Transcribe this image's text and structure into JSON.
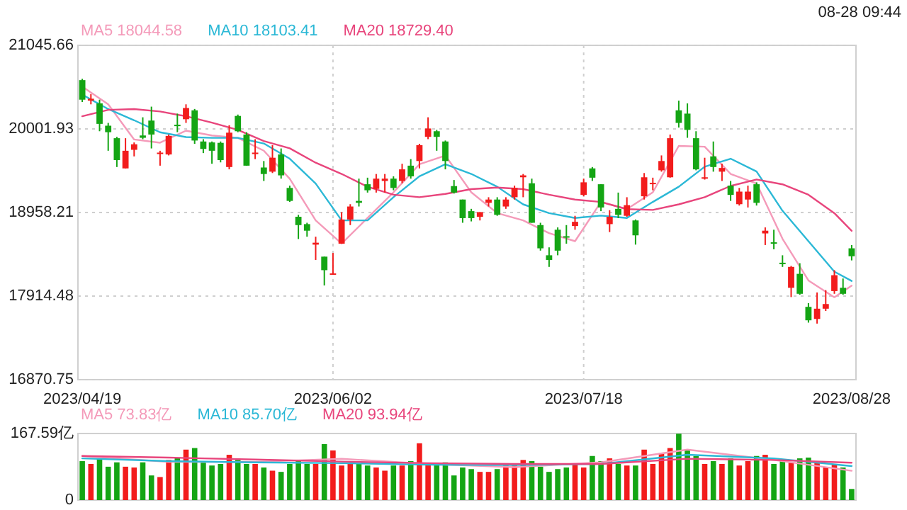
{
  "chart_data": [
    {
      "type": "candlestick",
      "annotations": [
        "08-28 09:44"
      ],
      "categories": [
        "2023/04/19",
        null,
        null,
        null,
        null,
        null,
        null,
        null,
        null,
        null,
        null,
        null,
        null,
        null,
        null,
        null,
        null,
        null,
        null,
        null,
        null,
        null,
        null,
        null,
        null,
        null,
        null,
        null,
        null,
        "2023/06/02",
        null,
        null,
        null,
        null,
        null,
        null,
        null,
        null,
        null,
        null,
        null,
        null,
        null,
        null,
        null,
        null,
        null,
        null,
        null,
        null,
        null,
        null,
        null,
        null,
        null,
        null,
        null,
        null,
        "2023/07/18",
        null,
        null,
        null,
        null,
        null,
        null,
        null,
        null,
        null,
        null,
        null,
        null,
        null,
        null,
        null,
        null,
        null,
        null,
        null,
        null,
        null,
        null,
        null,
        null,
        null,
        null,
        null,
        null,
        null,
        null,
        "2023/08/28"
      ],
      "ohlc": [
        [
          20611,
          20628,
          20338,
          20367
        ],
        [
          20355,
          20437,
          20309,
          20379
        ],
        [
          20321,
          20367,
          19973,
          20065
        ],
        [
          20042,
          20077,
          19729,
          19961
        ],
        [
          19886,
          19903,
          19526,
          19613
        ],
        [
          19509,
          19886,
          19509,
          19729
        ],
        [
          19741,
          19833,
          19659,
          19810
        ],
        [
          19920,
          20147,
          19874,
          19891
        ],
        [
          20106,
          20280,
          19758,
          19932
        ],
        [
          19694,
          19729,
          19543,
          19706
        ],
        [
          19683,
          19932,
          19671,
          19915
        ],
        [
          20054,
          20193,
          19961,
          20042
        ],
        [
          20123,
          20309,
          20077,
          20263
        ],
        [
          20234,
          20251,
          19816,
          19857
        ],
        [
          19845,
          19874,
          19700,
          19752
        ],
        [
          19833,
          19845,
          19567,
          19729
        ],
        [
          19828,
          19845,
          19584,
          19613
        ],
        [
          19526,
          20048,
          19497,
          19955
        ],
        [
          20164,
          20181,
          19961,
          19973
        ],
        [
          19932,
          19961,
          19543,
          19543
        ],
        [
          19694,
          19874,
          19625,
          19706
        ],
        [
          19520,
          19601,
          19352,
          19439
        ],
        [
          19468,
          19799,
          19451,
          19642
        ],
        [
          19683,
          19758,
          19381,
          19422
        ],
        [
          19265,
          19294,
          19091,
          19103
        ],
        [
          18905,
          18929,
          18627,
          18801
        ],
        [
          18813,
          18830,
          18656,
          18731
        ],
        [
          18557,
          18656,
          18366,
          18581
        ],
        [
          18407,
          18407,
          18047,
          18238
        ],
        [
          18186,
          18453,
          18186,
          18198
        ],
        [
          18569,
          18963,
          18569,
          18871
        ],
        [
          18871,
          19062,
          18801,
          19033
        ],
        [
          19103,
          19381,
          19033,
          19079
        ],
        [
          19311,
          19393,
          19207,
          19236
        ],
        [
          19253,
          19439,
          19207,
          19381
        ],
        [
          19352,
          19439,
          19207,
          19381
        ],
        [
          19381,
          19410,
          19236,
          19265
        ],
        [
          19352,
          19567,
          19323,
          19497
        ],
        [
          19543,
          19625,
          19381,
          19410
        ],
        [
          19601,
          19816,
          19509,
          19799
        ],
        [
          19903,
          20147,
          19874,
          20007
        ],
        [
          19973,
          19990,
          19729,
          19903
        ],
        [
          19845,
          19857,
          19497,
          19601
        ],
        [
          19288,
          19364,
          19195,
          19207
        ],
        [
          19120,
          19120,
          18830,
          18888
        ],
        [
          18975,
          19004,
          18847,
          18888
        ],
        [
          18905,
          18963,
          18859,
          18963
        ],
        [
          19079,
          19149,
          19033,
          19120
        ],
        [
          19120,
          19149,
          18917,
          18929
        ],
        [
          19033,
          19149,
          19004,
          19120
        ],
        [
          19149,
          19294,
          19120,
          19265
        ],
        [
          19398,
          19439,
          19149,
          19422
        ],
        [
          19323,
          19381,
          18830,
          18830
        ],
        [
          18801,
          18830,
          18482,
          18511
        ],
        [
          18424,
          18523,
          18279,
          18366
        ],
        [
          18743,
          18772,
          18424,
          18482
        ],
        [
          18662,
          18801,
          18569,
          18650
        ],
        [
          18789,
          18917,
          18743,
          18842
        ],
        [
          19178,
          19381,
          19161,
          19335
        ],
        [
          19509,
          19526,
          19352,
          19393
        ],
        [
          19311,
          19311,
          18975,
          19021
        ],
        [
          18813,
          18987,
          18714,
          18905
        ],
        [
          19004,
          19207,
          18888,
          18929
        ],
        [
          18917,
          19149,
          18905,
          19050
        ],
        [
          18859,
          18871,
          18557,
          18673
        ],
        [
          19161,
          19451,
          19120,
          19398
        ],
        [
          19317,
          19393,
          19236,
          19329
        ],
        [
          19485,
          19671,
          19468,
          19601
        ],
        [
          19398,
          19932,
          19393,
          19886
        ],
        [
          20234,
          20355,
          20019,
          20077
        ],
        [
          20193,
          20321,
          19891,
          19990
        ],
        [
          19886,
          19973,
          19485,
          19497
        ],
        [
          19387,
          19642,
          19369,
          19398
        ],
        [
          19659,
          19845,
          19468,
          19526
        ],
        [
          19468,
          19567,
          19352,
          19514
        ],
        [
          19294,
          19352,
          19103,
          19178
        ],
        [
          19062,
          19265,
          19045,
          19219
        ],
        [
          19120,
          19294,
          19021,
          19219
        ],
        [
          19311,
          19335,
          19045,
          19079
        ],
        [
          18697,
          18772,
          18552,
          18731
        ],
        [
          18586,
          18743,
          18499,
          18575
        ],
        [
          18331,
          18424,
          18279,
          18320
        ],
        [
          18018,
          18291,
          17902,
          18279
        ],
        [
          18192,
          18325,
          17931,
          17943
        ],
        [
          17780,
          17827,
          17583,
          17612
        ],
        [
          17629,
          17960,
          17571,
          17757
        ],
        [
          17757,
          17989,
          17728,
          17815
        ],
        [
          17977,
          18238,
          17943,
          18175
        ],
        [
          18018,
          18134,
          17931,
          17943
        ],
        [
          18511,
          18552,
          18360,
          18412
        ]
      ],
      "colors": [
        "#14a514",
        "#f21c1c",
        "#14a514",
        "#14a514",
        "#14a514",
        "#f21c1c",
        "#f21c1c",
        "#14a514",
        "#14a514",
        "#f21c1c",
        "#f21c1c",
        "#14a514",
        "#f21c1c",
        "#14a514",
        "#14a514",
        "#14a514",
        "#14a514",
        "#f21c1c",
        "#14a514",
        "#14a514",
        "#f21c1c",
        "#14a514",
        "#f21c1c",
        "#14a514",
        "#14a514",
        "#14a514",
        "#14a514",
        "#f21c1c",
        "#14a514",
        "#f21c1c",
        "#f21c1c",
        "#f21c1c",
        "#14a514",
        "#14a514",
        "#f21c1c",
        "#f21c1c",
        "#14a514",
        "#f21c1c",
        "#14a514",
        "#f21c1c",
        "#f21c1c",
        "#14a514",
        "#14a514",
        "#14a514",
        "#14a514",
        "#14a514",
        "#f21c1c",
        "#f21c1c",
        "#14a514",
        "#f21c1c",
        "#f21c1c",
        "#f21c1c",
        "#14a514",
        "#14a514",
        "#14a514",
        "#14a514",
        "#14a514",
        "#f21c1c",
        "#f21c1c",
        "#14a514",
        "#14a514",
        "#f21c1c",
        "#14a514",
        "#f21c1c",
        "#14a514",
        "#f21c1c",
        "#f21c1c",
        "#f21c1c",
        "#f21c1c",
        "#14a514",
        "#14a514",
        "#14a514",
        "#f21c1c",
        "#14a514",
        "#f21c1c",
        "#14a514",
        "#f21c1c",
        "#f21c1c",
        "#14a514",
        "#f21c1c",
        "#14a514",
        "#14a514",
        "#f21c1c",
        "#14a514",
        "#14a514",
        "#f21c1c",
        "#f21c1c",
        "#f21c1c",
        "#14a514",
        "#14a514"
      ],
      "series": [
        {
          "type": "line",
          "name": "MA5 18044.58",
          "color": "#f49ab9",
          "values": [
            20530,
            null,
            null,
            20310,
            null,
            null,
            19870,
            null,
            null,
            19830,
            null,
            null,
            19980,
            null,
            null,
            19920,
            null,
            null,
            19890,
            null,
            null,
            19730,
            null,
            null,
            19380,
            null,
            null,
            18860,
            null,
            null,
            18570,
            null,
            null,
            18890,
            null,
            null,
            19210,
            null,
            null,
            19560,
            null,
            null,
            19670,
            null,
            null,
            19210,
            null,
            null,
            18950,
            null,
            null,
            18860,
            null,
            null,
            18700,
            null,
            null,
            18600,
            null,
            null,
            19090,
            null,
            null,
            19000,
            null,
            null,
            19210,
            null,
            null,
            19790,
            null,
            null,
            19780,
            null,
            null,
            19440,
            null,
            null,
            19320,
            null,
            null,
            18630,
            null,
            null,
            18110,
            null,
            null,
            17900,
            null,
            18044.58
          ]
        },
        {
          "type": "line",
          "name": "MA10 18103.41",
          "color": "#2bb8d6",
          "values": [
            20430,
            null,
            null,
            20250,
            null,
            null,
            20110,
            null,
            null,
            19960,
            null,
            null,
            19900,
            null,
            null,
            19890,
            null,
            null,
            19890,
            null,
            null,
            19820,
            null,
            null,
            19630,
            null,
            null,
            19320,
            null,
            null,
            18860,
            null,
            null,
            18860,
            null,
            null,
            19150,
            null,
            null,
            19410,
            null,
            null,
            19560,
            null,
            null,
            19440,
            null,
            null,
            19280,
            null,
            null,
            19060,
            null,
            null,
            18950,
            null,
            null,
            18890,
            null,
            null,
            18920,
            null,
            null,
            18890,
            null,
            null,
            19090,
            null,
            null,
            19280,
            null,
            null,
            19530,
            null,
            null,
            19630,
            null,
            null,
            19470,
            null,
            null,
            18980,
            null,
            null,
            18600,
            null,
            null,
            18220,
            null,
            18103.41
          ]
        },
        {
          "type": "line",
          "name": "MA20 18729.40",
          "color": "#e8457c",
          "values": [
            20160,
            null,
            null,
            20240,
            null,
            null,
            20250,
            null,
            null,
            20220,
            null,
            null,
            20160,
            null,
            null,
            20080,
            null,
            null,
            19990,
            null,
            null,
            19850,
            null,
            null,
            19760,
            null,
            null,
            19580,
            null,
            null,
            19440,
            null,
            null,
            19280,
            null,
            null,
            19180,
            null,
            null,
            19150,
            null,
            null,
            19190,
            null,
            null,
            19250,
            null,
            null,
            19270,
            null,
            null,
            19250,
            null,
            null,
            19180,
            null,
            null,
            19120,
            null,
            null,
            19090,
            null,
            null,
            19000,
            null,
            null,
            18990,
            null,
            null,
            19060,
            null,
            null,
            19150,
            null,
            null,
            19290,
            null,
            null,
            19370,
            null,
            null,
            19310,
            null,
            null,
            19180,
            null,
            null,
            18950,
            null,
            18729.4
          ]
        }
      ],
      "ylim": [
        16870.75,
        21045.66
      ],
      "yticks": [
        16870.75,
        17914.48,
        18958.21,
        20001.93,
        21045.66
      ],
      "grid": true,
      "legend": "top left"
    },
    {
      "type": "bar",
      "tick_labels": "y",
      "categories": [
        null,
        null,
        null,
        null,
        null,
        null,
        null,
        null,
        null,
        null,
        null,
        null,
        null,
        null,
        null,
        null,
        null,
        null,
        null,
        null,
        null,
        null,
        null,
        null,
        null,
        null,
        null,
        null,
        null,
        null,
        null,
        null,
        null,
        null,
        null,
        null,
        null,
        null,
        null,
        null,
        null,
        null,
        null,
        null,
        null,
        null,
        null,
        null,
        null,
        null,
        null,
        null,
        null,
        null,
        null,
        null,
        null,
        null,
        null,
        null,
        null,
        null,
        null,
        null,
        null,
        null,
        null,
        null,
        null,
        null,
        null,
        null,
        null,
        null,
        null,
        null,
        null,
        null,
        null,
        null,
        null,
        null,
        null,
        null,
        null,
        null,
        null,
        null,
        null,
        null
      ],
      "values": [
        98,
        91,
        105,
        84,
        95,
        84,
        82,
        95,
        62,
        58,
        101,
        107,
        127,
        131,
        94,
        87,
        91,
        114,
        101,
        91,
        91,
        82,
        74,
        71,
        91,
        98,
        91,
        91,
        141,
        125,
        87,
        91,
        91,
        87,
        82,
        74,
        87,
        87,
        98,
        143,
        91,
        91,
        95,
        62,
        82,
        78,
        71,
        71,
        78,
        87,
        91,
        101,
        98,
        84,
        71,
        78,
        82,
        91,
        82,
        111,
        98,
        105,
        91,
        87,
        87,
        127,
        91,
        118,
        131,
        167,
        125,
        111,
        91,
        98,
        91,
        105,
        87,
        98,
        111,
        114,
        91,
        98,
        94,
        105,
        107,
        95,
        82,
        91,
        82,
        28
      ],
      "colors": [
        "#14a514",
        "#f21c1c",
        "#14a514",
        "#14a514",
        "#14a514",
        "#f21c1c",
        "#f21c1c",
        "#14a514",
        "#14a514",
        "#f21c1c",
        "#f21c1c",
        "#14a514",
        "#f21c1c",
        "#14a514",
        "#14a514",
        "#14a514",
        "#14a514",
        "#f21c1c",
        "#14a514",
        "#14a514",
        "#f21c1c",
        "#14a514",
        "#f21c1c",
        "#14a514",
        "#14a514",
        "#14a514",
        "#14a514",
        "#f21c1c",
        "#14a514",
        "#f21c1c",
        "#f21c1c",
        "#f21c1c",
        "#14a514",
        "#14a514",
        "#f21c1c",
        "#f21c1c",
        "#14a514",
        "#f21c1c",
        "#14a514",
        "#f21c1c",
        "#f21c1c",
        "#14a514",
        "#14a514",
        "#14a514",
        "#14a514",
        "#14a514",
        "#f21c1c",
        "#f21c1c",
        "#14a514",
        "#f21c1c",
        "#f21c1c",
        "#f21c1c",
        "#14a514",
        "#14a514",
        "#14a514",
        "#14a514",
        "#14a514",
        "#f21c1c",
        "#f21c1c",
        "#14a514",
        "#14a514",
        "#f21c1c",
        "#14a514",
        "#f21c1c",
        "#14a514",
        "#f21c1c",
        "#f21c1c",
        "#f21c1c",
        "#f21c1c",
        "#14a514",
        "#14a514",
        "#14a514",
        "#f21c1c",
        "#14a514",
        "#f21c1c",
        "#14a514",
        "#f21c1c",
        "#f21c1c",
        "#14a514",
        "#f21c1c",
        "#14a514",
        "#14a514",
        "#f21c1c",
        "#14a514",
        "#14a514",
        "#f21c1c",
        "#f21c1c",
        "#f21c1c",
        "#14a514",
        "#14a514"
      ],
      "series": [
        {
          "type": "line",
          "name": "MA5 73.83亿",
          "color": "#f49ab9",
          "values": [
            111,
            null,
            null,
            null,
            null,
            null,
            null,
            null,
            null,
            null,
            96,
            null,
            null,
            null,
            null,
            null,
            null,
            null,
            null,
            null,
            96,
            null,
            null,
            null,
            null,
            null,
            null,
            null,
            null,
            null,
            104,
            null,
            null,
            null,
            null,
            null,
            null,
            null,
            null,
            null,
            91,
            null,
            null,
            null,
            null,
            null,
            null,
            null,
            null,
            null,
            83,
            null,
            null,
            null,
            null,
            null,
            null,
            null,
            null,
            null,
            95,
            null,
            null,
            null,
            null,
            null,
            null,
            null,
            null,
            null,
            127,
            null,
            null,
            null,
            null,
            null,
            null,
            null,
            null,
            null,
            101,
            null,
            null,
            null,
            null,
            null,
            null,
            null,
            null,
            73.83
          ]
        },
        {
          "type": "line",
          "name": "MA10 85.70亿",
          "color": "#2bb8d6",
          "values": [
            105,
            null,
            null,
            null,
            null,
            null,
            null,
            null,
            null,
            null,
            98,
            null,
            null,
            null,
            null,
            null,
            null,
            null,
            null,
            null,
            95,
            null,
            null,
            null,
            null,
            null,
            null,
            null,
            null,
            null,
            93,
            null,
            null,
            null,
            null,
            null,
            null,
            null,
            null,
            null,
            89,
            null,
            null,
            null,
            null,
            null,
            null,
            null,
            null,
            null,
            88,
            null,
            null,
            null,
            null,
            null,
            null,
            null,
            null,
            null,
            91,
            null,
            null,
            null,
            null,
            null,
            null,
            null,
            null,
            null,
            114,
            null,
            null,
            null,
            null,
            null,
            null,
            null,
            null,
            null,
            105,
            null,
            null,
            null,
            null,
            null,
            null,
            null,
            null,
            85.7
          ]
        },
        {
          "type": "line",
          "name": "MA20 93.94亿",
          "color": "#e8457c",
          "values": [
            111,
            null,
            null,
            null,
            null,
            null,
            null,
            null,
            null,
            null,
            107,
            null,
            null,
            null,
            null,
            null,
            null,
            null,
            null,
            null,
            102,
            null,
            null,
            null,
            null,
            null,
            null,
            null,
            null,
            null,
            97,
            null,
            null,
            null,
            null,
            null,
            null,
            null,
            null,
            null,
            93,
            null,
            null,
            null,
            null,
            null,
            null,
            null,
            null,
            null,
            91,
            null,
            null,
            null,
            null,
            null,
            null,
            null,
            null,
            null,
            91,
            null,
            null,
            null,
            null,
            null,
            null,
            null,
            null,
            null,
            104,
            null,
            null,
            null,
            null,
            null,
            null,
            null,
            null,
            null,
            101,
            null,
            null,
            null,
            null,
            null,
            null,
            null,
            null,
            93.94
          ]
        }
      ],
      "ylim": [
        0,
        167.59
      ],
      "yticks": [
        0,
        {
          "value": 167.59,
          "label": "167.59亿"
        }
      ],
      "legend": "top left"
    }
  ]
}
